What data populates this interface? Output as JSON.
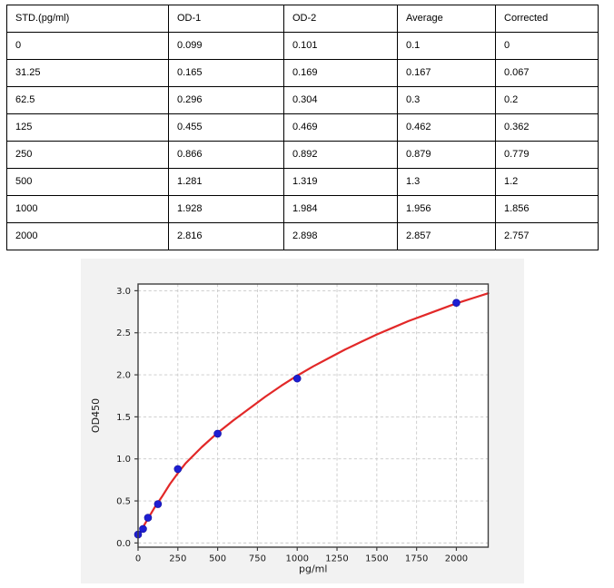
{
  "table": {
    "headers": [
      "STD.(pg/ml)",
      "OD-1",
      "OD-2",
      "Average",
      "Corrected"
    ],
    "rows": [
      [
        "0",
        "0.099",
        "0.101",
        "0.1",
        "0"
      ],
      [
        "31.25",
        "0.165",
        "0.169",
        "0.167",
        "0.067"
      ],
      [
        "62.5",
        "0.296",
        "0.304",
        "0.3",
        "0.2"
      ],
      [
        "125",
        "0.455",
        "0.469",
        "0.462",
        "0.362"
      ],
      [
        "250",
        "0.866",
        "0.892",
        "0.879",
        "0.779"
      ],
      [
        "500",
        "1.281",
        "1.319",
        "1.3",
        "1.2"
      ],
      [
        "1000",
        "1.928",
        "1.984",
        "1.956",
        "1.856"
      ],
      [
        "2000",
        "2.816",
        "2.898",
        "2.857",
        "2.757"
      ]
    ]
  },
  "chart_data": {
    "type": "scatter",
    "title": "",
    "xlabel": "pg/ml",
    "ylabel": "OD450",
    "xlim": [
      0,
      2200
    ],
    "ylim": [
      -0.05,
      3.08
    ],
    "x_ticks": [
      0,
      250,
      500,
      750,
      1000,
      1250,
      1500,
      1750,
      2000
    ],
    "y_ticks": [
      0.0,
      0.5,
      1.0,
      1.5,
      2.0,
      2.5,
      3.0
    ],
    "grid": "dashed",
    "legend": "none",
    "series": [
      {
        "name": "standard-points",
        "kind": "scatter",
        "x": [
          0,
          31.25,
          62.5,
          125,
          250,
          500,
          1000,
          2000
        ],
        "y": [
          0.1,
          0.167,
          0.3,
          0.462,
          0.879,
          1.3,
          1.956,
          2.857
        ],
        "color": "#1e1ed2",
        "marker_radius": 4
      },
      {
        "name": "fit-curve",
        "kind": "line",
        "x": [
          0,
          50,
          100,
          150,
          200,
          250,
          300,
          400,
          500,
          600,
          700,
          800,
          900,
          1000,
          1100,
          1200,
          1300,
          1400,
          1500,
          1600,
          1700,
          1800,
          1900,
          2000,
          2100,
          2200
        ],
        "y": [
          0.08,
          0.25,
          0.41,
          0.55,
          0.7,
          0.83,
          0.95,
          1.14,
          1.31,
          1.46,
          1.6,
          1.74,
          1.87,
          1.99,
          2.1,
          2.2,
          2.3,
          2.39,
          2.48,
          2.56,
          2.64,
          2.71,
          2.78,
          2.85,
          2.91,
          2.97
        ],
        "color": "#e22828",
        "width": 2.2
      }
    ],
    "colors": {
      "panel_bg": "#f2f2f2",
      "plot_bg": "#ffffff",
      "grid": "#c9c9c9",
      "spine": "#3f3f3f",
      "tick_label": "#1a1a1a"
    }
  }
}
